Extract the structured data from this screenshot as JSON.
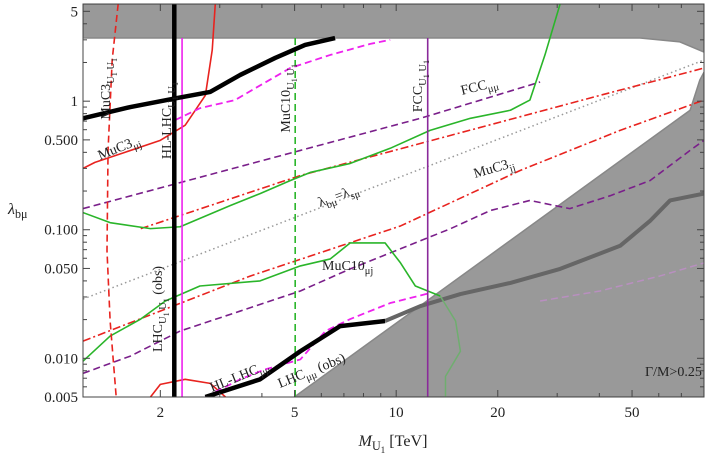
{
  "chart_data": {
    "type": "line",
    "xlog": true,
    "ylog": true,
    "xlim": [
      1.18,
      81.7
    ],
    "ylim": [
      0.005,
      5.7
    ],
    "xticks": [
      2,
      5,
      10,
      20,
      50
    ],
    "xminorticks": [
      3,
      4,
      6,
      7,
      8,
      9,
      30,
      40,
      60,
      70
    ],
    "yticks": [
      0.005,
      {
        "value": 0.01,
        "label": "0.010"
      },
      {
        "value": 0.05,
        "label": "0.050"
      },
      {
        "value": 0.1,
        "label": "0.100"
      },
      {
        "value": 0.5,
        "label": "0.500"
      },
      1,
      5
    ],
    "yminorticks": [
      0.006,
      0.007,
      0.008,
      0.009,
      0.02,
      0.03,
      0.04,
      0.06,
      0.07,
      0.08,
      0.09,
      0.2,
      0.3,
      0.4,
      0.6,
      0.7,
      0.8,
      0.9,
      2,
      3,
      4
    ],
    "xlabel": [
      {
        "text": "M",
        "level": 0,
        "italic": true
      },
      {
        "text": "U",
        "level": 1
      },
      {
        "text": "1",
        "level": 2
      },
      {
        "text": " [TeV]",
        "level": 0
      }
    ],
    "ylabel": [
      {
        "text": "λ",
        "level": 0,
        "italic": true
      },
      {
        "text": "bμ",
        "level": 1
      }
    ],
    "regions": [
      {
        "color": "#999999",
        "x": [
          1.18,
          52.8,
          69.3,
          81.7,
          81.7,
          1.18
        ],
        "values": [
          3.1,
          3.1,
          2.89,
          2.41,
          5.7,
          5.7
        ]
      },
      {
        "color": "#999999",
        "x": [
          4.99,
          74.3,
          79.4,
          81.7,
          81.7
        ],
        "values": [
          0.005,
          0.85,
          1.46,
          1.68,
          0.005
        ]
      }
    ],
    "series": [
      {
        "color": "#666666",
        "dash": "solid",
        "width": 4,
        "x": [
          9.27,
          11.8,
          15.5,
          21.8,
          30.6,
          46.1,
          56.5,
          64.8,
          81.7
        ],
        "values": [
          0.0195,
          0.0255,
          0.0316,
          0.0386,
          0.0496,
          0.075,
          0.117,
          0.169,
          0.191
        ]
      },
      {
        "color": "#b98fc0",
        "dash": "dashed",
        "width": 1.5,
        "x": [
          26.7,
          40.2,
          60.5,
          81.7
        ],
        "values": [
          0.0279,
          0.0334,
          0.0437,
          0.0552
        ]
      },
      {
        "color": "#6fae6f",
        "dash": "solid",
        "width": 1.5,
        "x": [
          13.5,
          15.0,
          15.5,
          14.0,
          14.0
        ],
        "values": [
          0.0305,
          0.0195,
          0.01135,
          0.00723,
          0.005
        ]
      },
      {
        "color": "#999999",
        "dash": "dotted",
        "width": 1.5,
        "x": [
          1.18,
          81.7
        ],
        "values": [
          0.0289,
          2.09
        ]
      },
      {
        "color": "#e8231f",
        "dash": "dashdot",
        "width": 1.6,
        "x": [
          1.75,
          5.2,
          14.5,
          40.2,
          81.7
        ],
        "values": [
          0.102,
          0.264,
          0.542,
          1.11,
          1.81
        ]
      },
      {
        "color": "#e8231f",
        "dash": "dashdot",
        "width": 1.6,
        "x": [
          1.18,
          3.7,
          10.3,
          23.3,
          46.1,
          81.7
        ],
        "values": [
          0.0136,
          0.0437,
          0.107,
          0.289,
          0.593,
          1.02
        ]
      },
      {
        "color": "#7a1f8a",
        "dash": "dashed",
        "width": 1.6,
        "x": [
          1.18,
          5.2,
          11.8,
          16.6,
          26.7
        ],
        "values": [
          0.146,
          0.414,
          0.736,
          0.965,
          1.41
        ]
      },
      {
        "color": "#7a1f8a",
        "dash": "dashed",
        "width": 1.6,
        "x": [
          1.18,
          1.63,
          2.29,
          3.45,
          5.2,
          7.31,
          10.3,
          14.5,
          19.0,
          24.9,
          32.7,
          43.1,
          56.5,
          74.3,
          81.7
        ],
        "values": [
          0.00764,
          0.0104,
          0.0163,
          0.0233,
          0.0334,
          0.0496,
          0.0711,
          0.102,
          0.141,
          0.169,
          0.146,
          0.184,
          0.241,
          0.414,
          0.496
        ]
      },
      {
        "color": "#2ab52a",
        "dash": "solid",
        "width": 1.6,
        "x": [
          1.18,
          1.42,
          1.87,
          2.29,
          3.22,
          3.95,
          4.85,
          5.56,
          7.31,
          9.6,
          12.6,
          16.6,
          21.8,
          24.9,
          27.6,
          30.6
        ],
        "values": [
          0.136,
          0.1135,
          0.102,
          0.1055,
          0.154,
          0.191,
          0.241,
          0.279,
          0.328,
          0.43,
          0.593,
          0.736,
          0.85,
          1.02,
          2.29,
          5.7
        ]
      },
      {
        "color": "#2ab52a",
        "dash": "solid",
        "width": 1.6,
        "x": [
          1.18,
          1.42,
          1.75,
          2.07,
          2.62,
          3.95,
          5.2,
          6.38,
          7.31,
          9.27,
          10.3,
          11.4,
          13.5
        ],
        "values": [
          0.0095,
          0.0149,
          0.0202,
          0.0279,
          0.0365,
          0.04,
          0.0523,
          0.0593,
          0.079,
          0.079,
          0.0552,
          0.0365,
          0.0305
        ]
      },
      {
        "color": "#2ab52a",
        "dash": "dashed",
        "width": 1.6,
        "x": [
          5.02,
          5.02
        ],
        "values": [
          0.005,
          3.1
        ]
      },
      {
        "color": "#e8231f",
        "dash": "dashed",
        "width": 1.6,
        "x": [
          1.5,
          1.44,
          1.4,
          1.39,
          1.42,
          1.48
        ],
        "values": [
          5.7,
          2.09,
          0.414,
          0.0686,
          0.0195,
          0.005
        ]
      },
      {
        "color": "#e8231f",
        "dash": "solid",
        "width": 1.6,
        "x": [
          2.91,
          2.85,
          2.72,
          2.37,
          2.0,
          1.57,
          1.28,
          1.18
        ],
        "values": [
          5.7,
          2.5,
          1.11,
          0.65,
          0.496,
          0.4,
          0.334,
          0.3
        ]
      },
      {
        "color": "#e8231f",
        "dash": "solid",
        "width": 1.6,
        "x": [
          1.87,
          2.0,
          2.37,
          2.81,
          3.12
        ],
        "values": [
          0.005,
          0.00627,
          0.00686,
          0.00638,
          0.005
        ]
      },
      {
        "color": "#ee22ee",
        "dash": "dashed",
        "width": 1.8,
        "x": [
          2.21,
          2.62,
          3.33,
          3.82,
          4.85,
          6.38,
          8.38,
          9.6
        ],
        "values": [
          0.711,
          0.882,
          1.02,
          1.26,
          1.81,
          2.29,
          2.79,
          3.0
        ]
      },
      {
        "color": "#ee22ee",
        "dash": "dashed",
        "width": 1.8,
        "x": [
          2.72,
          3.45,
          4.09,
          5.2,
          6.17,
          7.31,
          9.6,
          12.6
        ],
        "values": [
          0.005,
          0.00686,
          0.0082,
          0.0098,
          0.0163,
          0.0202,
          0.0269,
          0.0322
        ]
      },
      {
        "color": "#ee22ee",
        "dash": "solid",
        "width": 1.6,
        "x": [
          2.32,
          2.32
        ],
        "values": [
          0.005,
          3.1
        ]
      },
      {
        "color": "#8a2a9a",
        "dash": "solid",
        "width": 1.6,
        "x": [
          12.4,
          12.4
        ],
        "values": [
          0.005,
          3.1
        ]
      },
      {
        "color": "#000000",
        "dash": "solid",
        "width": 4.5,
        "x": [
          2.2,
          2.2
        ],
        "values": [
          0.005,
          5.7
        ]
      },
      {
        "color": "#000000",
        "dash": "solid",
        "width": 4.5,
        "x": [
          1.18,
          1.63,
          2.21,
          2.81,
          3.45,
          4.38,
          5.37,
          6.59
        ],
        "values": [
          0.736,
          0.9,
          1.05,
          1.18,
          1.6,
          2.17,
          2.74,
          3.1
        ]
      },
      {
        "color": "#000000",
        "dash": "solid",
        "width": 4.5,
        "x": [
          2.72,
          3.95,
          5.2,
          6.82,
          9.27
        ],
        "values": [
          0.005,
          0.00686,
          0.01135,
          0.0178,
          0.0195
        ]
      }
    ],
    "annotations": [
      {
        "color": "#e8231f",
        "runs": [
          {
            "text": "MuC3",
            "level": 0
          },
          {
            "text": "U",
            "level": 1
          },
          {
            "text": "1",
            "level": 2
          },
          {
            "text": " U",
            "level": 1
          },
          {
            "text": "1",
            "level": 2
          }
        ]
      },
      {
        "color": "#e8231f",
        "runs": [
          {
            "text": "MuC3",
            "level": 0
          },
          {
            "text": "μj",
            "level": 1
          }
        ]
      },
      {
        "color": "#ee22ee",
        "runs": [
          {
            "text": "HL-LHC",
            "level": 0
          },
          {
            "text": "U",
            "level": 1
          },
          {
            "text": "1",
            "level": 2
          },
          {
            "text": " U",
            "level": 1
          },
          {
            "text": "1",
            "level": 2
          }
        ]
      },
      {
        "color": "#2ab52a",
        "runs": [
          {
            "text": "MuC10",
            "level": 0
          },
          {
            "text": "U",
            "level": 1
          },
          {
            "text": "1",
            "level": 2
          },
          {
            "text": " U",
            "level": 1
          },
          {
            "text": "1",
            "level": 2
          }
        ]
      },
      {
        "color": "#7a1f8a",
        "runs": [
          {
            "text": "FCC",
            "level": 0
          },
          {
            "text": "U",
            "level": 1
          },
          {
            "text": "1",
            "level": 2
          },
          {
            "text": " U",
            "level": 1
          },
          {
            "text": "1",
            "level": 2
          }
        ]
      },
      {
        "color": "#7a1f8a",
        "runs": [
          {
            "text": "FCC",
            "level": 0
          },
          {
            "text": "μμ",
            "level": 1
          }
        ]
      },
      {
        "color": "#e8231f",
        "runs": [
          {
            "text": "MuC3",
            "level": 0
          },
          {
            "text": "jj",
            "level": 1
          }
        ]
      },
      {
        "color": "#888888",
        "runs": [
          {
            "text": "λ",
            "level": 0
          },
          {
            "text": "bμ",
            "level": 1
          },
          {
            "text": "=λ",
            "level": 0
          },
          {
            "text": "sμ",
            "level": 1
          }
        ]
      },
      {
        "color": "#2ab52a",
        "runs": [
          {
            "text": "MuC10",
            "level": 0
          },
          {
            "text": "μj",
            "level": 1
          }
        ]
      },
      {
        "color": "#000000",
        "runs": [
          {
            "text": "LHC",
            "level": 0
          },
          {
            "text": "U",
            "level": 1
          },
          {
            "text": "1",
            "level": 2
          },
          {
            "text": " U",
            "level": 1
          },
          {
            "text": "1",
            "level": 2
          },
          {
            "text": " (obs)",
            "level": 0
          }
        ]
      },
      {
        "color": "#ee22ee",
        "runs": [
          {
            "text": "HL-LHC",
            "level": 0
          },
          {
            "text": "μμ",
            "level": 1
          }
        ]
      },
      {
        "color": "#000000",
        "runs": [
          {
            "text": "LHC",
            "level": 0
          },
          {
            "text": "μμ",
            "level": 1
          },
          {
            "text": " (obs)",
            "level": 0
          }
        ]
      },
      {
        "color": "#000000",
        "runs": [
          {
            "text": "Γ/M>0.25",
            "level": 0
          }
        ]
      }
    ]
  }
}
